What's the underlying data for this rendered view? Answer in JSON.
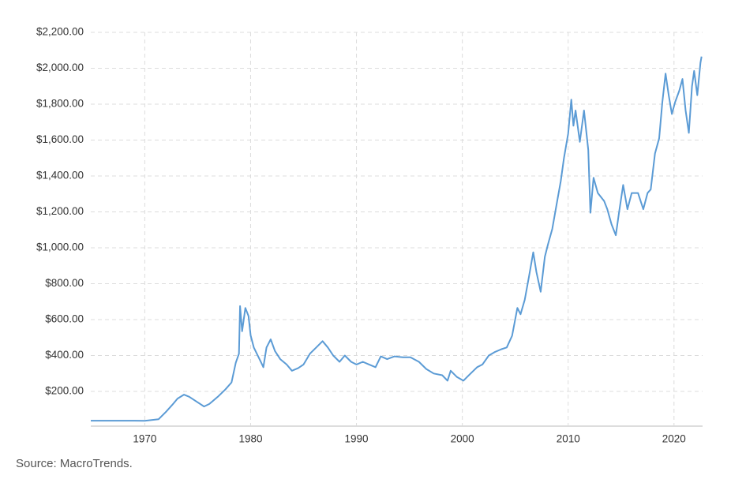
{
  "chart_data": {
    "type": "line",
    "color": "#5b9bd5",
    "grid": true,
    "xlim": [
      1964.9,
      2022.7
    ],
    "xticks": [
      1970,
      1980,
      1990,
      2000,
      2010,
      2020
    ],
    "ylim": [
      0,
      2200
    ],
    "yticks": [
      {
        "value": 200,
        "label": "$200.00"
      },
      {
        "value": 400,
        "label": "$400.00"
      },
      {
        "value": 600,
        "label": "$600.00"
      },
      {
        "value": 800,
        "label": "$800.00"
      },
      {
        "value": 1000,
        "label": "$1,000.00"
      },
      {
        "value": 1200,
        "label": "$1,200.00"
      },
      {
        "value": 1400,
        "label": "$1,400.00"
      },
      {
        "value": 1600,
        "label": "$1,600.00"
      },
      {
        "value": 1800,
        "label": "$1,800.00"
      },
      {
        "value": 2000,
        "label": "$2,000.00"
      },
      {
        "value": 2200,
        "label": "$2,200.00"
      }
    ],
    "x": [
      1964.9,
      1969,
      1970,
      1971.3,
      1972,
      1972.6,
      1973.1,
      1973.7,
      1974.2,
      1974.8,
      1975.6,
      1976.1,
      1976.9,
      1977.6,
      1978.2,
      1978.6,
      1978.9,
      1979,
      1979.2,
      1979.5,
      1979.8,
      1980,
      1980.3,
      1981,
      1981.2,
      1981.5,
      1981.9,
      1982.3,
      1982.8,
      1983.4,
      1983.9,
      1984.5,
      1985,
      1985.6,
      1986.2,
      1986.8,
      1987.3,
      1987.8,
      1988.4,
      1988.9,
      1989.5,
      1990,
      1990.6,
      1991.2,
      1991.8,
      1992.3,
      1992.9,
      1993.6,
      1994.4,
      1995.1,
      1995.9,
      1996.6,
      1997.3,
      1998.1,
      1998.6,
      1998.9,
      1999.5,
      2000.1,
      2000.7,
      2001.4,
      2001.9,
      2002.5,
      2003.1,
      2003.7,
      2004.2,
      2004.7,
      2005.2,
      2005.5,
      2005.9,
      2006.3,
      2006.7,
      2007,
      2007.4,
      2007.8,
      2008.1,
      2008.5,
      2008.9,
      2009.3,
      2009.6,
      2010,
      2010.3,
      2010.5,
      2010.7,
      2011.1,
      2011.5,
      2011.9,
      2012.1,
      2012.4,
      2012.8,
      2013.4,
      2013.7,
      2014.1,
      2014.5,
      2014.8,
      2015.2,
      2015.6,
      2016,
      2016.6,
      2017.1,
      2017.5,
      2017.8,
      2018.2,
      2018.6,
      2018.9,
      2019.2,
      2019.5,
      2019.8,
      2020.1,
      2020.5,
      2020.8,
      2021.1,
      2021.4,
      2021.7,
      2021.9,
      2022.2,
      2022.5,
      2022.6
    ],
    "values": [
      37,
      37,
      36,
      45,
      86,
      125,
      160,
      182,
      170,
      147,
      116,
      130,
      170,
      210,
      250,
      360,
      410,
      675,
      535,
      665,
      620,
      512,
      445,
      360,
      335,
      445,
      490,
      425,
      380,
      350,
      315,
      330,
      350,
      410,
      445,
      480,
      445,
      400,
      365,
      400,
      365,
      350,
      365,
      350,
      335,
      395,
      380,
      395,
      390,
      390,
      365,
      325,
      300,
      290,
      260,
      315,
      280,
      260,
      295,
      335,
      350,
      400,
      420,
      435,
      445,
      510,
      665,
      630,
      710,
      840,
      975,
      865,
      755,
      950,
      1020,
      1105,
      1240,
      1370,
      1500,
      1635,
      1825,
      1680,
      1765,
      1590,
      1765,
      1545,
      1195,
      1390,
      1305,
      1260,
      1215,
      1130,
      1070,
      1195,
      1350,
      1215,
      1305,
      1305,
      1215,
      1305,
      1325,
      1525,
      1610,
      1810,
      1970,
      1850,
      1745,
      1810,
      1875,
      1940,
      1765,
      1640,
      1900,
      1985,
      1850,
      2030,
      2065
    ]
  },
  "source": "Source: MacroTrends."
}
